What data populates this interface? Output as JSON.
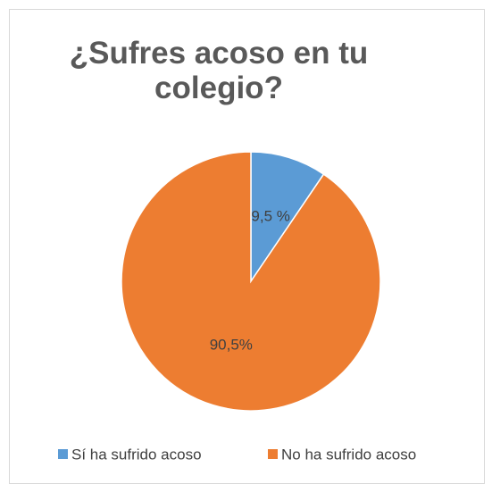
{
  "chart_data": {
    "type": "pie",
    "title": "¿Sufres acoso en tu colegio?",
    "categories": [
      "Sí ha sufrido acoso",
      "No ha sufrido acoso"
    ],
    "values": [
      9.5,
      90.5
    ],
    "value_labels": [
      "9,5 %",
      "90,5%"
    ],
    "colors": [
      "#5b9bd5",
      "#ed7d31"
    ],
    "legend": "bottom"
  }
}
